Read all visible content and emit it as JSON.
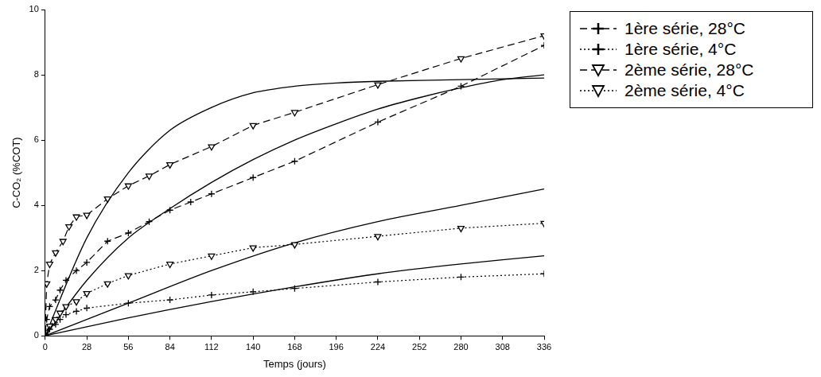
{
  "chart_data": {
    "type": "line",
    "x_label": "Temps (jours)",
    "y_label": "C-CO₂ (%COT)",
    "xlim": [
      0,
      336
    ],
    "xticks": [
      0,
      28,
      56,
      84,
      112,
      140,
      168,
      196,
      224,
      252,
      280,
      308,
      336
    ],
    "ylim": [
      0,
      10
    ],
    "yticks": [
      0,
      2,
      4,
      6,
      8,
      10
    ],
    "grid": false,
    "legend": "right",
    "series": [
      {
        "name": "1ère série, 28°C",
        "color": "#000000",
        "line_style": "dashed",
        "marker": "plus",
        "x": [
          0,
          1,
          3,
          7,
          10,
          14,
          21,
          28,
          42,
          56,
          70,
          84,
          98,
          112,
          140,
          168,
          224,
          280,
          336
        ],
        "values": [
          0.1,
          0.5,
          0.9,
          1.1,
          1.4,
          1.7,
          2.0,
          2.25,
          2.9,
          3.15,
          3.5,
          3.85,
          4.1,
          4.35,
          4.85,
          5.35,
          6.55,
          7.65,
          8.9
        ]
      },
      {
        "name": "1ère série, 4°C",
        "color": "#000000",
        "line_style": "dotted",
        "marker": "plus",
        "x": [
          0,
          3,
          7,
          10,
          14,
          21,
          28,
          56,
          84,
          112,
          140,
          168,
          224,
          280,
          336
        ],
        "values": [
          0.05,
          0.2,
          0.35,
          0.5,
          0.65,
          0.75,
          0.85,
          1.0,
          1.1,
          1.25,
          1.35,
          1.45,
          1.65,
          1.8,
          1.9
        ]
      },
      {
        "name": "2ème série, 28°C",
        "color": "#000000",
        "line_style": "dashed",
        "marker": "triangle_down",
        "x": [
          0,
          1,
          3,
          7,
          12,
          16,
          21,
          28,
          42,
          56,
          70,
          84,
          112,
          140,
          168,
          224,
          280,
          336
        ],
        "values": [
          0.1,
          1.6,
          2.2,
          2.55,
          2.9,
          3.35,
          3.65,
          3.7,
          4.2,
          4.6,
          4.9,
          5.25,
          5.8,
          6.45,
          6.85,
          7.7,
          8.5,
          9.2
        ]
      },
      {
        "name": "2ème série, 4°C",
        "color": "#000000",
        "line_style": "dotted",
        "marker": "triangle_down",
        "x": [
          0,
          3,
          7,
          10,
          14,
          21,
          28,
          42,
          56,
          84,
          112,
          140,
          168,
          224,
          280,
          336
        ],
        "values": [
          0.05,
          0.3,
          0.5,
          0.7,
          0.9,
          1.05,
          1.3,
          1.6,
          1.85,
          2.2,
          2.45,
          2.7,
          2.8,
          3.05,
          3.3,
          3.45
        ]
      },
      {
        "color": "#000000",
        "line_style": "solid",
        "marker": "none",
        "x": [
          0,
          28,
          56,
          84,
          112,
          140,
          168,
          196,
          224,
          280,
          336
        ],
        "values": [
          0,
          3.0,
          5.0,
          6.3,
          7.0,
          7.45,
          7.65,
          7.75,
          7.8,
          7.85,
          7.9
        ]
      },
      {
        "color": "#000000",
        "line_style": "solid",
        "marker": "none",
        "x": [
          0,
          28,
          56,
          84,
          112,
          140,
          168,
          196,
          224,
          252,
          280,
          308,
          336
        ],
        "values": [
          0,
          1.7,
          3.0,
          3.9,
          4.7,
          5.4,
          6.0,
          6.5,
          6.95,
          7.3,
          7.6,
          7.85,
          8.0
        ]
      },
      {
        "color": "#000000",
        "line_style": "solid",
        "marker": "none",
        "x": [
          0,
          56,
          112,
          168,
          224,
          280,
          336
        ],
        "values": [
          0,
          1.0,
          2.0,
          2.85,
          3.5,
          4.0,
          4.5
        ]
      },
      {
        "color": "#000000",
        "line_style": "solid",
        "marker": "none",
        "x": [
          0,
          56,
          112,
          168,
          224,
          280,
          336
        ],
        "values": [
          0,
          0.55,
          1.05,
          1.5,
          1.9,
          2.2,
          2.45
        ]
      }
    ]
  }
}
